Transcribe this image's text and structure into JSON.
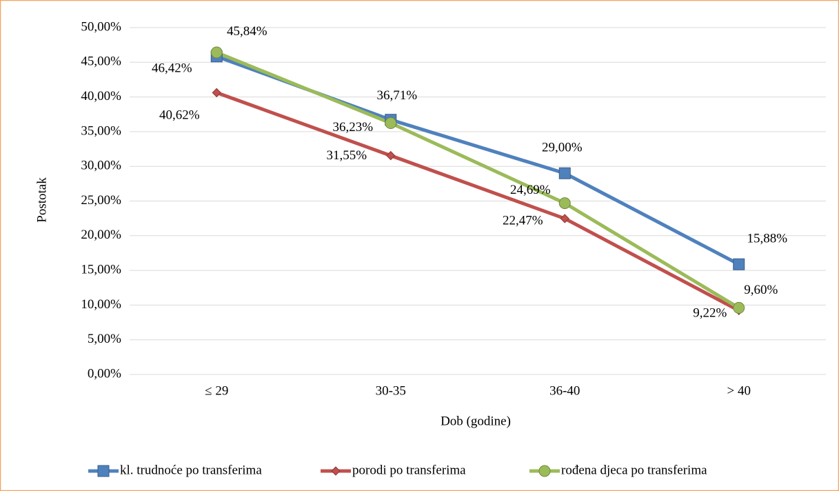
{
  "chart_data": {
    "type": "line",
    "x_label": "Dob (godine)",
    "y_label": "Postotak",
    "categories": [
      "≤ 29",
      "30-35",
      "36-40",
      "> 40"
    ],
    "ylim": [
      0,
      50
    ],
    "yticks": [
      {
        "value": 0,
        "label": "0,00%"
      },
      {
        "value": 5,
        "label": "5,00%"
      },
      {
        "value": 10,
        "label": "10,00%"
      },
      {
        "value": 15,
        "label": "15,00%"
      },
      {
        "value": 20,
        "label": "20,00%"
      },
      {
        "value": 25,
        "label": "25,00%"
      },
      {
        "value": 30,
        "label": "30,00%"
      },
      {
        "value": 35,
        "label": "35,00%"
      },
      {
        "value": 40,
        "label": "40,00%"
      },
      {
        "value": 45,
        "label": "45,00%"
      },
      {
        "value": 50,
        "label": "50,00%"
      }
    ],
    "grid": true,
    "legend": "bottom",
    "series": [
      {
        "name": "kl. trudnoće po transferima",
        "color": "#4f81bd",
        "marker": "square",
        "values": [
          45.84,
          36.71,
          29.0,
          15.88
        ],
        "value_labels": [
          "45,84%",
          "36,71%",
          "29,00%",
          "15,88%"
        ]
      },
      {
        "name": "porodi po transferima",
        "color": "#c0504d",
        "marker": "diamond",
        "values": [
          40.62,
          31.55,
          22.47,
          9.22
        ],
        "value_labels": [
          "40,62%",
          "31,55%",
          "22,47%",
          "9,22%"
        ]
      },
      {
        "name": "rođena djeca po transferima",
        "color": "#9bbb59",
        "marker": "circle",
        "values": [
          46.42,
          36.23,
          24.69,
          9.6
        ],
        "value_labels": [
          "46,42%",
          "36,23%",
          "24,69%",
          "9,60%"
        ]
      }
    ]
  }
}
